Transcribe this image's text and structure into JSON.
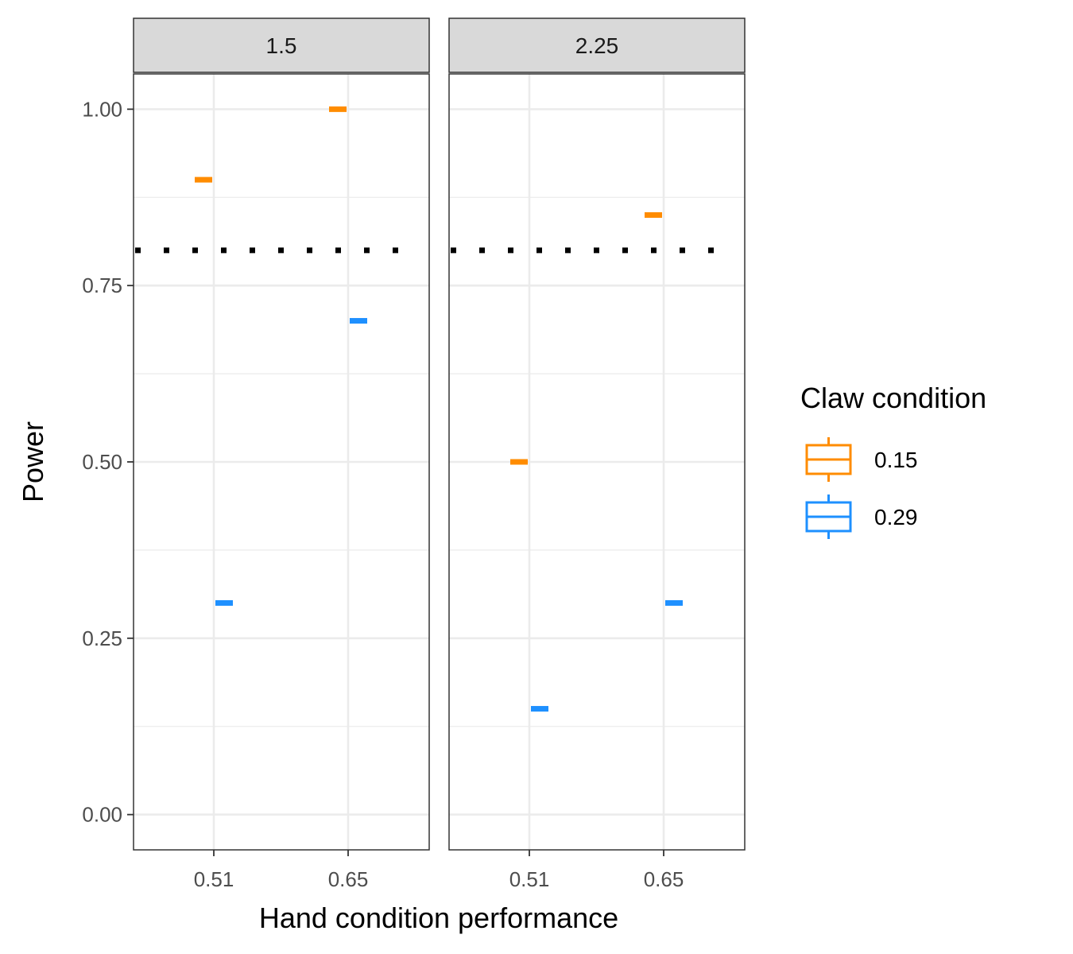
{
  "chart_data": {
    "type": "boxplot",
    "xlabel": "Hand condition performance",
    "ylabel": "Power",
    "ylim": [
      -0.05,
      1.05
    ],
    "yticks": [
      0,
      0.25,
      0.5,
      0.75,
      1
    ],
    "ytick_labels": [
      "0.00",
      "0.25",
      "0.50",
      "0.75",
      "1.00"
    ],
    "categories": [
      "0.51",
      "0.65"
    ],
    "reference_line": {
      "y": 0.8,
      "style": "dotted"
    },
    "grid": true,
    "legend": {
      "title": "Claw condition",
      "position": "right",
      "entries": [
        {
          "label": "0.15",
          "color": "#ff8c00"
        },
        {
          "label": "0.29",
          "color": "#1e90ff"
        }
      ]
    },
    "panels": [
      {
        "strip": "1.5",
        "series": [
          {
            "name": "0.15",
            "values": [
              0.9,
              1.0
            ]
          },
          {
            "name": "0.29",
            "values": [
              0.3,
              0.7
            ]
          }
        ]
      },
      {
        "strip": "2.25",
        "series": [
          {
            "name": "0.15",
            "values": [
              0.5,
              0.85
            ]
          },
          {
            "name": "0.29",
            "values": [
              0.15,
              0.3
            ]
          }
        ]
      }
    ]
  }
}
